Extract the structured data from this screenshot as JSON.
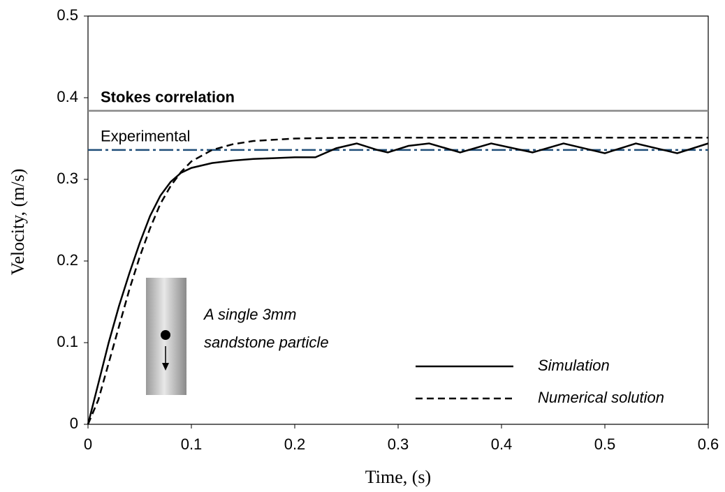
{
  "chart_data": {
    "type": "line",
    "x_label": "Time, (s)",
    "y_label": "Velocity, (m/s)",
    "xlim": [
      0,
      0.6
    ],
    "xticks": [
      0,
      0.1,
      0.2,
      0.3,
      0.4,
      0.5,
      0.6
    ],
    "ylim": [
      0,
      0.5
    ],
    "yticks": [
      0,
      0.1,
      0.2,
      0.3,
      0.4,
      0.5
    ],
    "series": [
      {
        "name": "Simulation",
        "color": "#000000",
        "dash": "solid",
        "x": [
          0,
          0.01,
          0.02,
          0.03,
          0.04,
          0.05,
          0.06,
          0.07,
          0.08,
          0.09,
          0.1,
          0.12,
          0.14,
          0.16,
          0.18,
          0.2,
          0.22,
          0.24,
          0.26,
          0.28,
          0.29,
          0.31,
          0.33,
          0.36,
          0.39,
          0.43,
          0.46,
          0.5,
          0.53,
          0.57,
          0.6
        ],
        "values": [
          0,
          0.05,
          0.1,
          0.145,
          0.185,
          0.222,
          0.255,
          0.28,
          0.297,
          0.308,
          0.314,
          0.32,
          0.323,
          0.325,
          0.326,
          0.327,
          0.327,
          0.338,
          0.344,
          0.336,
          0.333,
          0.341,
          0.344,
          0.333,
          0.344,
          0.333,
          0.344,
          0.332,
          0.344,
          0.332,
          0.344
        ]
      },
      {
        "name": "Numerical solution",
        "color": "#000000",
        "dash": "dashed",
        "x": [
          0,
          0.01,
          0.02,
          0.03,
          0.04,
          0.05,
          0.06,
          0.07,
          0.08,
          0.09,
          0.1,
          0.12,
          0.14,
          0.16,
          0.2,
          0.25,
          0.3,
          0.6
        ],
        "values": [
          0,
          0.03,
          0.075,
          0.12,
          0.165,
          0.205,
          0.24,
          0.27,
          0.292,
          0.309,
          0.322,
          0.336,
          0.343,
          0.347,
          0.35,
          0.351,
          0.351,
          0.351
        ]
      }
    ],
    "reference_lines": [
      {
        "label": "Stokes correlation",
        "value": 0.384,
        "color": "#888888",
        "dash": "solid"
      },
      {
        "label": "Experimental",
        "value": 0.336,
        "color": "#1f4e79",
        "dash": "dashdot"
      }
    ],
    "annotation": [
      "A single 3mm",
      "sandstone particle"
    ],
    "legend": "lower right"
  }
}
